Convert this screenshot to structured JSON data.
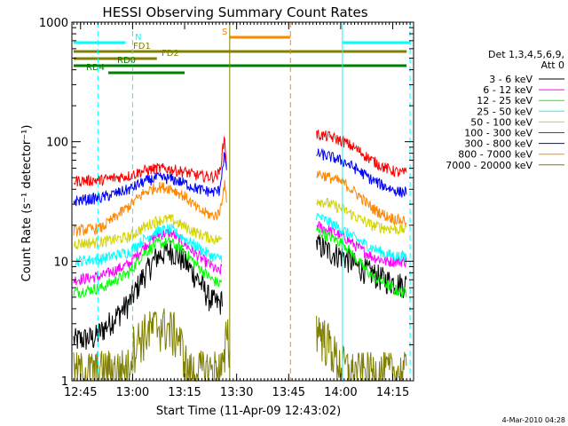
{
  "chart_data": {
    "type": "line",
    "title": "HESSI Observing Summary Count Rates",
    "xlabel": "Start Time (11-Apr-09 12:43:02)",
    "ylabel": "Count Rate (s⁻¹ detector⁻¹)",
    "y_scale": "log",
    "ylim": [
      1,
      1000
    ],
    "xlim_minutes": [
      -0.5,
      98
    ],
    "x_ticks": [
      {
        "t": 2,
        "label": "12:45"
      },
      {
        "t": 17,
        "label": "13:00"
      },
      {
        "t": 32,
        "label": "13:15"
      },
      {
        "t": 47,
        "label": "13:30"
      },
      {
        "t": 62,
        "label": "13:45"
      },
      {
        "t": 77,
        "label": "14:00"
      },
      {
        "t": 92,
        "label": "14:15"
      }
    ],
    "y_ticks": [
      {
        "v": 1,
        "label": "1"
      },
      {
        "v": 10,
        "label": "10"
      },
      {
        "v": 100,
        "label": "100"
      },
      {
        "v": 1000,
        "label": "1000"
      }
    ],
    "legend_header": [
      "Det 1,3,4,5,6,9,",
      "Att 0"
    ],
    "legend_position": "right",
    "series": [
      {
        "name": "3 - 6 keV",
        "color": "#000000",
        "seg1": [
          [
            0,
            2.2
          ],
          [
            6,
            2.3
          ],
          [
            10,
            3
          ],
          [
            16,
            4.5
          ],
          [
            20,
            7.5
          ],
          [
            24,
            11
          ],
          [
            28,
            12.5
          ],
          [
            32,
            10
          ],
          [
            36,
            7
          ],
          [
            39,
            5
          ],
          [
            41,
            4.5
          ],
          [
            42.5,
            4.5
          ],
          [
            43,
            6
          ]
        ],
        "seg2": [
          [
            70,
            14
          ],
          [
            74,
            12
          ],
          [
            78,
            11
          ],
          [
            82,
            9
          ],
          [
            86,
            8
          ],
          [
            90,
            7
          ],
          [
            94,
            6.5
          ],
          [
            96,
            6.5
          ]
        ]
      },
      {
        "name": "6 - 12 keV",
        "color": "#ff00ff",
        "seg1": [
          [
            0,
            7
          ],
          [
            8,
            7.5
          ],
          [
            16,
            9.5
          ],
          [
            20,
            13
          ],
          [
            24,
            16.5
          ],
          [
            28,
            17.5
          ],
          [
            32,
            14
          ],
          [
            36,
            11
          ],
          [
            40,
            9
          ],
          [
            42,
            8
          ],
          [
            42.8,
            9
          ]
        ],
        "seg2": [
          [
            70,
            20
          ],
          [
            74,
            18
          ],
          [
            78,
            16
          ],
          [
            82,
            13
          ],
          [
            86,
            11
          ],
          [
            90,
            10
          ],
          [
            94,
            10
          ],
          [
            96,
            10
          ]
        ]
      },
      {
        "name": "12 - 25 keV",
        "color": "#00ff00",
        "seg1": [
          [
            0,
            5.5
          ],
          [
            8,
            6
          ],
          [
            16,
            8
          ],
          [
            20,
            11.5
          ],
          [
            24,
            14
          ],
          [
            28,
            14.5
          ],
          [
            32,
            12
          ],
          [
            36,
            9
          ],
          [
            40,
            7
          ],
          [
            42,
            6.5
          ],
          [
            42.8,
            7
          ]
        ],
        "seg2": [
          [
            70,
            18
          ],
          [
            74,
            16
          ],
          [
            78,
            14
          ],
          [
            82,
            10
          ],
          [
            86,
            7.5
          ],
          [
            90,
            6.5
          ],
          [
            94,
            5.5
          ],
          [
            96,
            5.5
          ]
        ]
      },
      {
        "name": "25 - 50 keV",
        "color": "#00ffff",
        "seg1": [
          [
            0,
            10
          ],
          [
            8,
            10.5
          ],
          [
            16,
            12
          ],
          [
            20,
            15
          ],
          [
            24,
            18
          ],
          [
            28,
            18.5
          ],
          [
            32,
            15.5
          ],
          [
            36,
            13
          ],
          [
            40,
            11
          ],
          [
            42,
            10.5
          ],
          [
            42.8,
            11
          ]
        ],
        "seg2": [
          [
            70,
            24
          ],
          [
            74,
            21
          ],
          [
            78,
            18
          ],
          [
            82,
            15
          ],
          [
            86,
            13
          ],
          [
            90,
            11.5
          ],
          [
            94,
            11
          ],
          [
            96,
            11
          ]
        ]
      },
      {
        "name": "50 - 100 keV",
        "color": "#d4d400",
        "seg1": [
          [
            0,
            14
          ],
          [
            8,
            14.5
          ],
          [
            16,
            16
          ],
          [
            20,
            19
          ],
          [
            24,
            22
          ],
          [
            28,
            22.5
          ],
          [
            32,
            19.5
          ],
          [
            36,
            17
          ],
          [
            40,
            15.5
          ],
          [
            42,
            15
          ],
          [
            42.8,
            16
          ]
        ],
        "seg2": [
          [
            70,
            33
          ],
          [
            74,
            30
          ],
          [
            78,
            27
          ],
          [
            82,
            23
          ],
          [
            86,
            20
          ],
          [
            90,
            19
          ],
          [
            94,
            18.5
          ],
          [
            96,
            18.5
          ]
        ]
      },
      {
        "name": "100 - 300 keV",
        "color": "#ff0000",
        "seg1": [
          [
            0,
            47
          ],
          [
            8,
            48
          ],
          [
            16,
            52
          ],
          [
            20,
            57
          ],
          [
            24,
            60
          ],
          [
            28,
            59
          ],
          [
            32,
            56
          ],
          [
            36,
            52
          ],
          [
            40,
            51
          ],
          [
            42,
            54
          ],
          [
            43.5,
            110
          ],
          [
            44.2,
            60
          ]
        ],
        "seg2": [
          [
            70,
            115
          ],
          [
            74,
            110
          ],
          [
            78,
            100
          ],
          [
            82,
            85
          ],
          [
            86,
            70
          ],
          [
            90,
            60
          ],
          [
            94,
            55
          ],
          [
            96,
            55
          ]
        ]
      },
      {
        "name": "300 - 800 keV",
        "color": "#0000ff",
        "seg1": [
          [
            0,
            32
          ],
          [
            8,
            34
          ],
          [
            16,
            40
          ],
          [
            20,
            46
          ],
          [
            24,
            50
          ],
          [
            28,
            49
          ],
          [
            32,
            45
          ],
          [
            36,
            40
          ],
          [
            40,
            38
          ],
          [
            42,
            39
          ],
          [
            43.5,
            80
          ],
          [
            44.2,
            50
          ]
        ],
        "seg2": [
          [
            70,
            80
          ],
          [
            74,
            75
          ],
          [
            78,
            68
          ],
          [
            82,
            58
          ],
          [
            86,
            48
          ],
          [
            90,
            42
          ],
          [
            94,
            38
          ],
          [
            96,
            38
          ]
        ]
      },
      {
        "name": "800 - 7000 keV",
        "color": "#ff8800",
        "seg1": [
          [
            0,
            18
          ],
          [
            8,
            19
          ],
          [
            16,
            29
          ],
          [
            20,
            37
          ],
          [
            24,
            42
          ],
          [
            28,
            41
          ],
          [
            32,
            35
          ],
          [
            36,
            27
          ],
          [
            40,
            24
          ],
          [
            42,
            25
          ],
          [
            43.5,
            45
          ],
          [
            44.2,
            30
          ]
        ],
        "seg2": [
          [
            70,
            55
          ],
          [
            74,
            50
          ],
          [
            78,
            45
          ],
          [
            82,
            36
          ],
          [
            86,
            28
          ],
          [
            90,
            24
          ],
          [
            94,
            22
          ],
          [
            96,
            22
          ]
        ]
      },
      {
        "name": "7000 - 20000 keV",
        "color": "#808000",
        "seg1": [
          [
            0,
            1.2
          ],
          [
            16,
            1.3
          ],
          [
            17,
            2
          ],
          [
            20,
            2.5
          ],
          [
            25,
            3
          ],
          [
            30,
            2.5
          ],
          [
            32,
            1.6
          ],
          [
            33,
            1.2
          ],
          [
            43.5,
            1.3
          ],
          [
            44.2,
            3.5
          ],
          [
            45,
            1.5
          ]
        ],
        "seg2": [
          [
            70,
            3
          ],
          [
            72,
            2.4
          ],
          [
            74,
            2
          ],
          [
            76,
            1.5
          ],
          [
            80,
            1.2
          ],
          [
            96,
            1.2
          ]
        ]
      }
    ],
    "state_bars": [
      {
        "name": "N",
        "color": "#00ffff",
        "spans": [
          [
            0,
            15
          ],
          [
            77.5,
            97
          ]
        ]
      },
      {
        "name": "S",
        "color": "#ff8800",
        "spans": [
          [
            45,
            62.5
          ]
        ]
      },
      {
        "name": "FD1",
        "color": "#808000",
        "spans": [
          [
            0,
            96
          ]
        ]
      },
      {
        "name": "FD2",
        "color": "#808000",
        "spans": [
          [
            0,
            24
          ]
        ]
      },
      {
        "name": "RD0",
        "color": "#008000",
        "spans": [
          [
            0,
            96
          ]
        ]
      },
      {
        "name": "RD4",
        "color": "#008000",
        "spans": [
          [
            10,
            32
          ]
        ]
      }
    ],
    "v_lines": [
      {
        "t": 7,
        "color": "#00ffff",
        "style": "dashed"
      },
      {
        "t": 17,
        "color": "#00ffff",
        "style": "dashed"
      },
      {
        "t": 77.5,
        "color": "#00ffff",
        "style": "solid"
      },
      {
        "t": 97,
        "color": "#00ffff",
        "style": "dashed"
      },
      {
        "t": 45,
        "color": "#808000",
        "style": "solid"
      },
      {
        "t": 62.5,
        "color": "#ff8800",
        "style": "dashed"
      }
    ],
    "footer_date": "4-Mar-2010 04:28"
  }
}
